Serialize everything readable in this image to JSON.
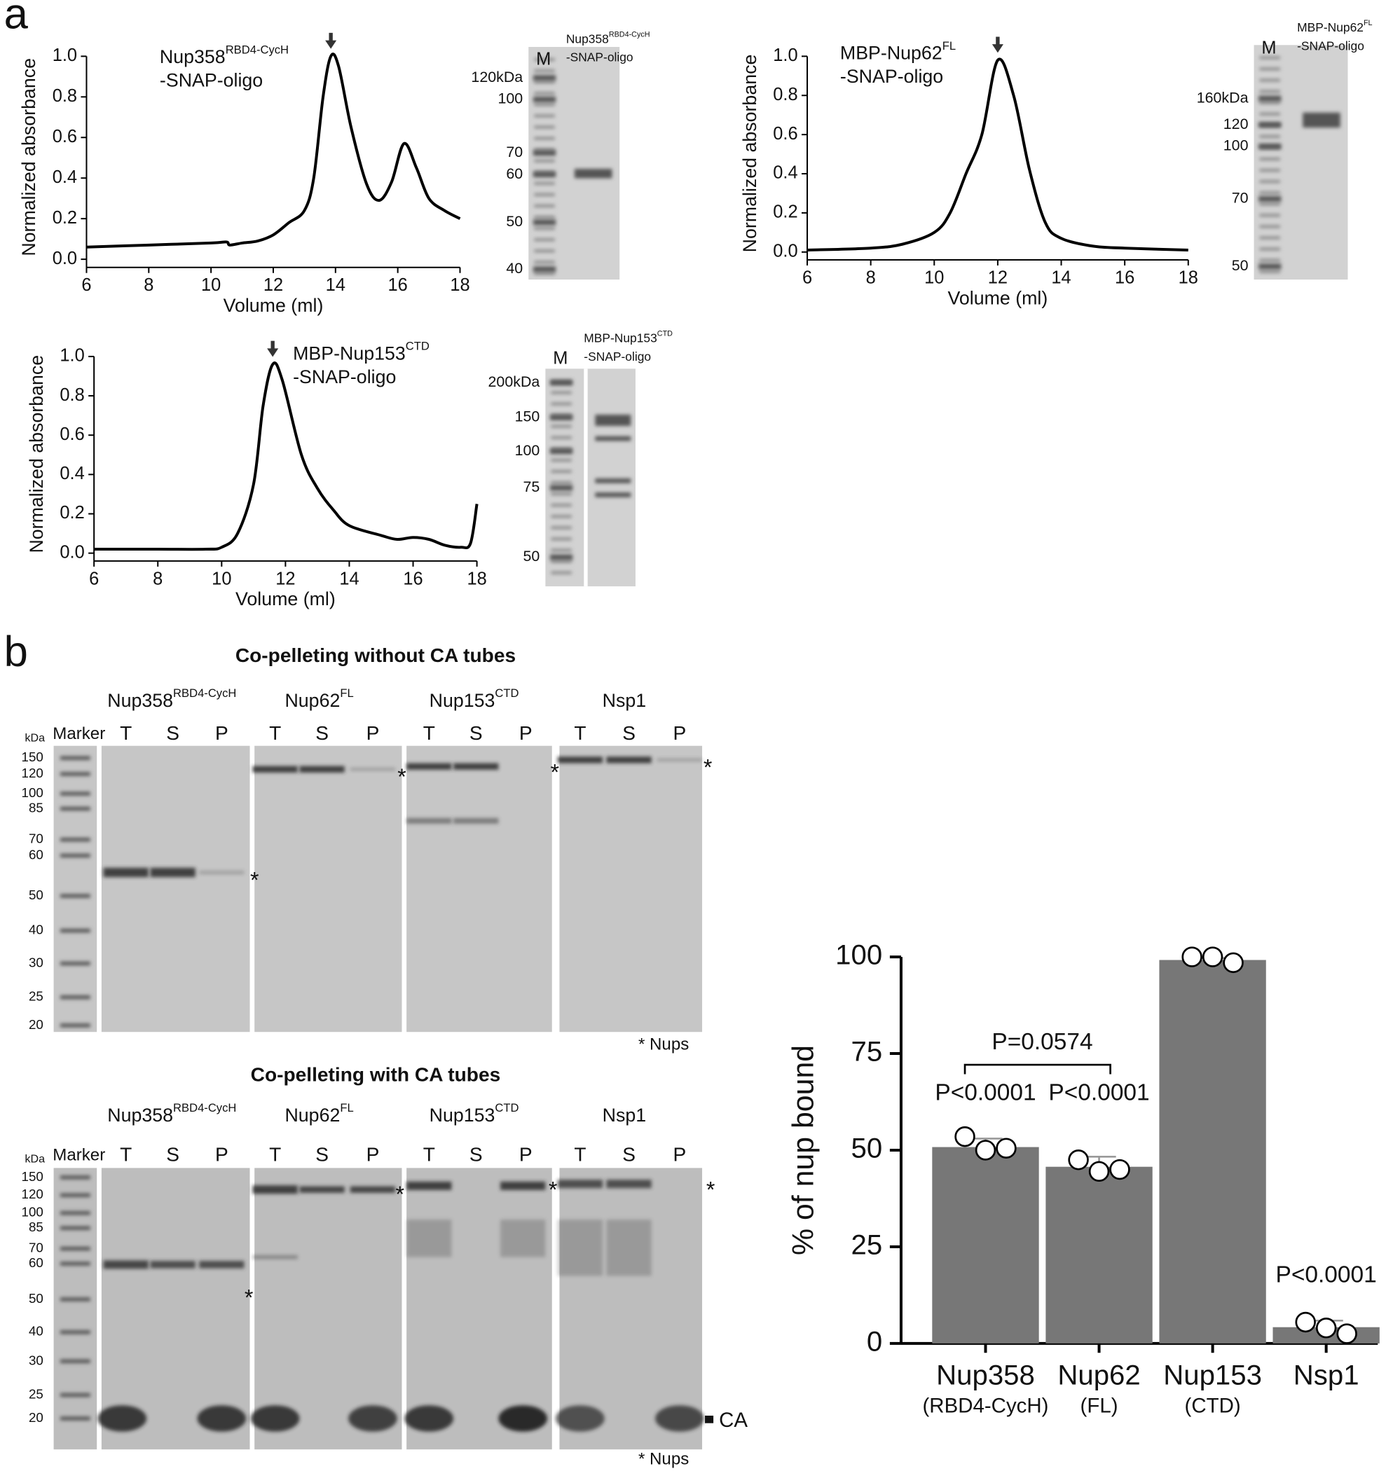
{
  "panel_labels": [
    "a",
    "b"
  ],
  "chart_data": [
    {
      "type": "line",
      "annotation": {
        "name": "Nup358",
        "sup": "RBD4-CycH",
        "line2": "-SNAP-oligo"
      },
      "y_label": "Normalized absorbance",
      "x_label": "Volume (ml)",
      "color": "#000000",
      "x": [
        6,
        8,
        10,
        10.5,
        10.6,
        11,
        11.5,
        12,
        12.5,
        13,
        13.3,
        13.6,
        13.85,
        14.1,
        14.5,
        15,
        15.4,
        15.8,
        16.2,
        16.6,
        17,
        17.5,
        18
      ],
      "values": [
        0.06,
        0.07,
        0.08,
        0.085,
        0.07,
        0.08,
        0.09,
        0.12,
        0.18,
        0.24,
        0.4,
        0.8,
        1.0,
        0.95,
        0.65,
        0.37,
        0.29,
        0.38,
        0.57,
        0.45,
        0.3,
        0.24,
        0.2
      ],
      "xlim": [
        6,
        18
      ],
      "xticks": [
        6,
        8,
        10,
        12,
        14,
        16,
        18
      ],
      "ylim": [
        -0.04,
        1.0
      ],
      "yticks": [
        {
          "value": 0,
          "label": "0.0"
        },
        0.2,
        0.4,
        0.6,
        0.8,
        {
          "value": 1,
          "label": "1.0"
        }
      ]
    },
    {
      "type": "line",
      "annotation": {
        "name": "MBP-Nup62",
        "sup": "FL",
        "line2": "-SNAP-oligo"
      },
      "y_label": "Normalized absorbance",
      "x_label": "Volume (ml)",
      "color": "#000000",
      "x": [
        6,
        8,
        9,
        10,
        10.5,
        11,
        11.5,
        12,
        12.5,
        13,
        13.5,
        14,
        15,
        16,
        18
      ],
      "values": [
        0.01,
        0.02,
        0.04,
        0.1,
        0.2,
        0.4,
        0.6,
        0.98,
        0.8,
        0.42,
        0.15,
        0.07,
        0.03,
        0.02,
        0.01
      ],
      "xlim": [
        6,
        18
      ],
      "xticks": [
        6,
        8,
        10,
        12,
        14,
        16,
        18
      ],
      "ylim": [
        -0.04,
        1.0
      ],
      "yticks": [
        {
          "value": 0,
          "label": "0.0"
        },
        0.2,
        0.4,
        0.6,
        0.8,
        {
          "value": 1,
          "label": "1.0"
        }
      ]
    },
    {
      "type": "line",
      "annotation": {
        "name": "MBP-Nup153",
        "sup": "CTD",
        "line2": "-SNAP-oligo"
      },
      "y_label": "Normalized absorbance",
      "x_label": "Volume (ml)",
      "color": "#000000",
      "x": [
        6,
        8,
        9.5,
        10,
        10.5,
        11,
        11.3,
        11.6,
        11.9,
        12.5,
        13,
        13.5,
        14,
        15,
        15.5,
        16,
        16.5,
        17,
        17.5,
        17.8,
        18
      ],
      "values": [
        0.02,
        0.02,
        0.02,
        0.03,
        0.1,
        0.35,
        0.75,
        0.96,
        0.88,
        0.5,
        0.33,
        0.22,
        0.14,
        0.09,
        0.07,
        0.08,
        0.07,
        0.04,
        0.03,
        0.05,
        0.25
      ],
      "xlim": [
        6,
        18
      ],
      "xticks": [
        6,
        8,
        10,
        12,
        14,
        16,
        18
      ],
      "ylim": [
        -0.04,
        1.0
      ],
      "yticks": [
        {
          "value": 0,
          "label": "0.0"
        },
        0.2,
        0.4,
        0.6,
        0.8,
        {
          "value": 1,
          "label": "1.0"
        }
      ]
    },
    {
      "type": "bar",
      "y_label": "% of nup bound",
      "color": "#777777",
      "categories": [
        "Nup358",
        "Nup62",
        "Nup153",
        "Nsp1"
      ],
      "category_sublabels": [
        "(RBD4-CycH)",
        "(FL)",
        "(CTD)",
        null
      ],
      "values": [
        50.8,
        45.7,
        99.2,
        4.2
      ],
      "errors": [
        2.2,
        2.6,
        0.5,
        1.7
      ],
      "points": [
        [
          53.5,
          50,
          50.5
        ],
        [
          47.5,
          44.5,
          45
        ],
        [
          100,
          100,
          98.5
        ],
        [
          5.5,
          4,
          2.5
        ]
      ],
      "ylim": [
        0,
        100
      ],
      "yticks": [
        0,
        25,
        50,
        75,
        100
      ],
      "grid": false,
      "bracket_label": "P=0.0574",
      "annotations": [
        "P<0.0001",
        "P<0.0001",
        "P<0.0001"
      ]
    }
  ],
  "gels_a": [
    {
      "marker": "M",
      "sample": {
        "name": "Nup358",
        "sup": "RBD4-CycH",
        "line2": "-SNAP-oligo"
      },
      "sizes": [
        "120kDa",
        100,
        70,
        60,
        50,
        40
      ]
    },
    {
      "marker": "M",
      "sample": {
        "name": "MBP-Nup62",
        "sup": "FL",
        "line2": "-SNAP-oligo"
      },
      "sizes": [
        "160kDa",
        120,
        100,
        70,
        50
      ]
    },
    {
      "marker": "M",
      "sample": {
        "name": "MBP-Nup153",
        "sup": "CTD",
        "line2": "-SNAP-oligo"
      },
      "sizes": [
        "200kDa",
        150,
        100,
        75,
        50
      ]
    }
  ],
  "gels_b": {
    "titles": [
      "Co-pelleting without CA tubes",
      "Co-pelleting with CA tubes"
    ],
    "unit": "kDa",
    "marker": "Marker",
    "groups": [
      {
        "name": "Nup358",
        "sup": "RBD4-CycH"
      },
      {
        "name": "Nup62",
        "sup": "FL"
      },
      {
        "name": "Nup153",
        "sup": "CTD"
      },
      {
        "name": "Nsp1"
      }
    ],
    "lanes": [
      "T",
      "S",
      "P"
    ],
    "sizes": [
      150,
      120,
      100,
      85,
      70,
      60,
      50,
      40,
      30,
      25,
      20
    ],
    "asterisk": "*",
    "footnote": "* Nups",
    "ca_label": "CA"
  }
}
